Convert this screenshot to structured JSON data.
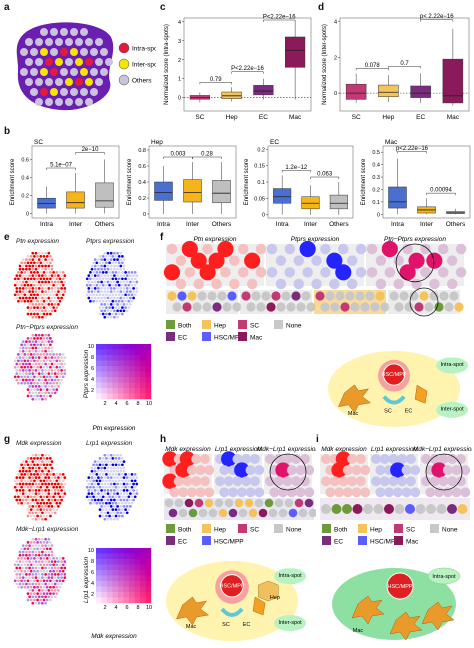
{
  "panel_labels": {
    "a": "a",
    "b": "b",
    "c": "c",
    "d": "d",
    "e": "e",
    "f": "f",
    "g": "g",
    "h": "h",
    "i": "i"
  },
  "panel_a": {
    "legend": [
      {
        "label": "Intra-spots",
        "color": "#e5193a"
      },
      {
        "label": "Inter-spots",
        "color": "#f5e600"
      },
      {
        "label": "Others",
        "color": "#c9c4dc"
      }
    ]
  },
  "colors": {
    "SC": "#c23a74",
    "Hep": "#f4c35a",
    "EC": "#7a2c7d",
    "Mac": "#8a1a5a",
    "Intra": "#4a6fd1",
    "Inter": "#f4b41a",
    "Others": "#bfbfbf",
    "tissue_purple": "#6a1fb0",
    "red": "#ff1a1a",
    "blue": "#1a1aff",
    "both": "#6d9a3a",
    "none": "#c8c8c8",
    "hsc": "#5c5cff",
    "halo": "#fff3b0",
    "green_oval": "#b8f2c2"
  },
  "chart_data": [
    {
      "id": "c",
      "type": "box",
      "ylabel": "Normalized score (Intra-spots)",
      "categories": [
        "SC",
        "Hep",
        "EC",
        "Mac"
      ],
      "ylim": [
        -0.7,
        4.2
      ],
      "yticks": [
        0,
        1,
        2,
        3,
        4
      ],
      "boxes": [
        {
          "min": -0.25,
          "q1": -0.08,
          "median": 0.0,
          "q3": 0.12,
          "max": 0.28
        },
        {
          "min": -0.2,
          "q1": -0.05,
          "median": 0.1,
          "q3": 0.3,
          "max": 0.55
        },
        {
          "min": -0.1,
          "q1": 0.15,
          "median": 0.35,
          "q3": 0.65,
          "max": 1.0
        },
        {
          "min": -0.1,
          "q1": 1.6,
          "median": 2.5,
          "q3": 3.2,
          "max": 4.0
        }
      ],
      "annotations": [
        {
          "text": "0.79",
          "from": 0,
          "to": 1,
          "level": 0
        },
        {
          "text": "P<2.22e−16",
          "from": 1,
          "to": 2,
          "level": 1
        },
        {
          "text": "P<2.22e−16",
          "from": 2,
          "to": 3,
          "level": 2
        }
      ]
    },
    {
      "id": "d",
      "type": "box",
      "ylabel": "Normalized score (Inter-spots)",
      "categories": [
        "SC",
        "Hep",
        "EC",
        "Mac"
      ],
      "ylim": [
        -1.0,
        4.2
      ],
      "yticks": [
        0,
        2,
        4
      ],
      "boxes": [
        {
          "min": -0.55,
          "q1": -0.35,
          "median": 0.0,
          "q3": 0.5,
          "max": 1.1
        },
        {
          "min": -0.5,
          "q1": -0.2,
          "median": 0.05,
          "q3": 0.45,
          "max": 1.0
        },
        {
          "min": -0.55,
          "q1": -0.25,
          "median": 0.0,
          "q3": 0.4,
          "max": 1.1
        },
        {
          "min": -0.7,
          "q1": -0.55,
          "median": -0.15,
          "q3": 1.9,
          "max": 3.6
        }
      ],
      "annotations": [
        {
          "text": "0.078",
          "from": 0,
          "to": 1,
          "level": 0
        },
        {
          "text": "0.7",
          "from": 1,
          "to": 2,
          "level": 1
        },
        {
          "text": "p< 2.22e−16",
          "from": 2,
          "to": 3,
          "level": 2
        }
      ]
    },
    {
      "id": "b1",
      "type": "box",
      "title": "SC",
      "ylabel": "Enrichment score",
      "categories": [
        "Intra",
        "Inter",
        "Others"
      ],
      "ylim": [
        -0.05,
        0.75
      ],
      "yticks": [
        0.0,
        0.2,
        0.4,
        0.6
      ],
      "boxes": [
        {
          "min": 0.0,
          "q1": 0.06,
          "median": 0.11,
          "q3": 0.17,
          "max": 0.3
        },
        {
          "min": 0.0,
          "q1": 0.06,
          "median": 0.12,
          "q3": 0.24,
          "max": 0.45
        },
        {
          "min": 0.0,
          "q1": 0.07,
          "median": 0.14,
          "q3": 0.34,
          "max": 0.6
        }
      ],
      "annotations": [
        {
          "text": "5.1e−07",
          "from": 0,
          "to": 1,
          "level": 0
        },
        {
          "text": "2e−10",
          "from": 1,
          "to": 2,
          "level": 1
        }
      ]
    },
    {
      "id": "b2",
      "type": "box",
      "title": "Hep",
      "ylabel": "Enrichment score",
      "categories": [
        "Intra",
        "Inter",
        "Others"
      ],
      "ylim": [
        -0.05,
        0.85
      ],
      "yticks": [
        0.0,
        0.2,
        0.4,
        0.6,
        0.8
      ],
      "boxes": [
        {
          "min": 0.0,
          "q1": 0.17,
          "median": 0.27,
          "q3": 0.4,
          "max": 0.6
        },
        {
          "min": 0.0,
          "q1": 0.15,
          "median": 0.27,
          "q3": 0.43,
          "max": 0.65
        },
        {
          "min": 0.0,
          "q1": 0.14,
          "median": 0.26,
          "q3": 0.42,
          "max": 0.65
        }
      ],
      "annotations": [
        {
          "text": "0.003",
          "from": 0,
          "to": 1,
          "level": 0
        },
        {
          "text": "0.28",
          "from": 1,
          "to": 2,
          "level": 0
        }
      ]
    },
    {
      "id": "b3",
      "type": "box",
      "title": "EC",
      "ylabel": "Enrichment score",
      "categories": [
        "Intra",
        "Inter",
        "Others"
      ],
      "ylim": [
        -0.01,
        0.21
      ],
      "yticks": [
        0.0,
        0.05,
        0.1,
        0.15,
        0.2
      ],
      "boxes": [
        {
          "min": 0.0,
          "q1": 0.035,
          "median": 0.055,
          "q3": 0.08,
          "max": 0.12
        },
        {
          "min": 0.0,
          "q1": 0.018,
          "median": 0.035,
          "q3": 0.055,
          "max": 0.09
        },
        {
          "min": 0.0,
          "q1": 0.018,
          "median": 0.035,
          "q3": 0.06,
          "max": 0.1
        }
      ],
      "annotations": [
        {
          "text": "1.2e−12",
          "from": 0,
          "to": 1,
          "level": 0
        },
        {
          "text": "0.063",
          "from": 1,
          "to": 2,
          "level": 0
        }
      ]
    },
    {
      "id": "b4",
      "type": "box",
      "title": "Mac",
      "ylabel": "Enrichment score",
      "categories": [
        "Intra",
        "Inter",
        "Others"
      ],
      "ylim": [
        -0.03,
        0.55
      ],
      "yticks": [
        0.0,
        0.1,
        0.2,
        0.3,
        0.4,
        0.5
      ],
      "boxes": [
        {
          "min": 0.0,
          "q1": 0.05,
          "median": 0.1,
          "q3": 0.22,
          "max": 0.45
        },
        {
          "min": 0.0,
          "q1": 0.01,
          "median": 0.035,
          "q3": 0.06,
          "max": 0.13
        },
        {
          "min": 0.0,
          "q1": 0.005,
          "median": 0.012,
          "q3": 0.022,
          "max": 0.045
        }
      ],
      "annotations": [
        {
          "text": "p<2.22e−16",
          "from": 0,
          "to": 1,
          "level": 1
        },
        {
          "text": "0.00094",
          "from": 1,
          "to": 2,
          "level": 0
        }
      ]
    }
  ],
  "panel_e": {
    "ptn_label": "Ptn expression",
    "ptprs_label": "Ptprs expression",
    "combo_label": "Ptn−Ptprs expression",
    "legend_xlabel": "Ptn expression",
    "legend_ylabel": "Ptprs expression",
    "ticks": [
      "2",
      "4",
      "6",
      "8",
      "10"
    ]
  },
  "panel_f": {
    "titles": [
      "Ptn expression",
      "Ptprs expression",
      "Ptn−Ptprs expression"
    ],
    "legend": [
      {
        "label": "Both",
        "key": "both"
      },
      {
        "label": "Hep",
        "key": "Hep"
      },
      {
        "label": "SC",
        "key": "SC"
      },
      {
        "label": "None",
        "key": "none"
      },
      {
        "label": "EC",
        "key": "EC"
      },
      {
        "label": "HSC/MPP",
        "key": "hsc"
      },
      {
        "label": "Mac",
        "key": "Mac"
      }
    ],
    "diagram": {
      "center": "HSC/MPP",
      "sc": "SC",
      "ec": "EC",
      "mac": "Mac",
      "intra": "Intra-spot",
      "inter": "Inter-spot"
    }
  },
  "panel_g": {
    "mdk_label": "Mdk expression",
    "lrp1_label": "Lrp1 expression",
    "combo_label": "Mdk−Lrp1 expression",
    "legend_xlabel": "Mdk expression",
    "legend_ylabel": "Lrp1 expression",
    "ticks": [
      "2",
      "4",
      "6",
      "8",
      "10"
    ]
  },
  "panel_h": {
    "titles": [
      "Mdk expression",
      "Lrp1 expression",
      "Mdk−Lrp1 expression"
    ],
    "legend": [
      {
        "label": "Both",
        "key": "both"
      },
      {
        "label": "Hep",
        "key": "Hep"
      },
      {
        "label": "SC",
        "key": "SC"
      },
      {
        "label": "None",
        "key": "none"
      },
      {
        "label": "EC",
        "key": "EC"
      },
      {
        "label": "HSC/MPP",
        "key": "hsc"
      }
    ],
    "diagram": {
      "center": "HSC/MPP",
      "sc": "SC",
      "ec": "EC",
      "hep": "Hep",
      "mac": "Mac",
      "intra": "Intra-spot",
      "inter": "Inter-spot"
    }
  },
  "panel_i": {
    "titles": [
      "Mdk expression",
      "Lrp1 expression",
      "Mdk−Lrp1 expression"
    ],
    "legend": [
      {
        "label": "Both",
        "key": "both"
      },
      {
        "label": "Hep",
        "key": "Hep"
      },
      {
        "label": "SC",
        "key": "SC"
      },
      {
        "label": "None",
        "key": "none"
      },
      {
        "label": "EC",
        "key": "EC"
      },
      {
        "label": "HSC/MPP",
        "key": "hsc"
      },
      {
        "label": "Mac",
        "key": "Mac"
      }
    ],
    "diagram": {
      "center": "HSC/MPP",
      "mac": "Mac",
      "intra": "Intra-spot"
    }
  }
}
